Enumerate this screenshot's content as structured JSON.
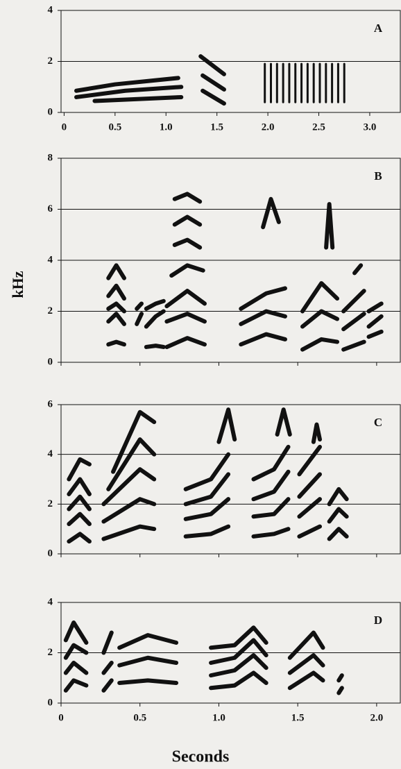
{
  "figure": {
    "ylabel": "kHz",
    "xlabel": "Seconds"
  },
  "chart_data": [
    {
      "type": "spectrogram",
      "label": "A",
      "xlim": [
        -0.03,
        3.3
      ],
      "ylim": [
        0,
        4
      ],
      "yticks": [
        0,
        2,
        4
      ],
      "xticks": [
        0,
        0.5,
        {
          "value": 1,
          "label": "1.0"
        },
        1.5,
        {
          "value": 2,
          "label": "2.0"
        },
        2.5,
        {
          "value": 3,
          "label": "3.0"
        }
      ],
      "show_xtick_labels": true,
      "grid": true,
      "traces": [
        {
          "x": [
            0.3,
            1.15
          ],
          "y": [
            0.45,
            0.6
          ]
        },
        {
          "x": [
            0.12,
            0.6,
            1.15
          ],
          "y": [
            0.6,
            0.85,
            1.0
          ]
        },
        {
          "x": [
            0.12,
            0.5,
            1.12
          ],
          "y": [
            0.85,
            1.1,
            1.35
          ]
        },
        {
          "x": [
            1.36,
            1.57
          ],
          "y": [
            0.85,
            0.35
          ]
        },
        {
          "x": [
            1.36,
            1.57
          ],
          "y": [
            1.45,
            0.9
          ]
        },
        {
          "x": [
            1.34,
            1.57
          ],
          "y": [
            2.2,
            1.5
          ]
        },
        {
          "x": [
            1.97,
            1.97
          ],
          "y": [
            0.4,
            1.9
          ]
        },
        {
          "x": [
            2.03,
            2.03
          ],
          "y": [
            0.4,
            1.9
          ]
        },
        {
          "x": [
            2.09,
            2.09
          ],
          "y": [
            0.4,
            1.9
          ]
        },
        {
          "x": [
            2.15,
            2.15
          ],
          "y": [
            0.4,
            1.9
          ]
        },
        {
          "x": [
            2.21,
            2.21
          ],
          "y": [
            0.4,
            1.9
          ]
        },
        {
          "x": [
            2.27,
            2.27
          ],
          "y": [
            0.4,
            1.9
          ]
        },
        {
          "x": [
            2.33,
            2.33
          ],
          "y": [
            0.4,
            1.9
          ]
        },
        {
          "x": [
            2.39,
            2.39
          ],
          "y": [
            0.4,
            1.9
          ]
        },
        {
          "x": [
            2.45,
            2.45
          ],
          "y": [
            0.4,
            1.9
          ]
        },
        {
          "x": [
            2.51,
            2.51
          ],
          "y": [
            0.4,
            1.9
          ]
        },
        {
          "x": [
            2.57,
            2.57
          ],
          "y": [
            0.4,
            1.9
          ]
        },
        {
          "x": [
            2.63,
            2.63
          ],
          "y": [
            0.4,
            1.9
          ]
        },
        {
          "x": [
            2.69,
            2.69
          ],
          "y": [
            0.4,
            1.9
          ]
        },
        {
          "x": [
            2.75,
            2.75
          ],
          "y": [
            0.4,
            1.9
          ]
        }
      ]
    },
    {
      "type": "spectrogram",
      "label": "B",
      "xlim": [
        0,
        2.15
      ],
      "ylim": [
        0,
        8
      ],
      "yticks": [
        0,
        2,
        4,
        6,
        8
      ],
      "xticks": [
        0,
        0.5,
        1,
        1.5,
        2
      ],
      "show_xtick_labels": false,
      "grid": true,
      "traces": [
        {
          "x": [
            0.3,
            0.35,
            0.4
          ],
          "y": [
            0.7,
            0.8,
            0.7
          ]
        },
        {
          "x": [
            0.3,
            0.35,
            0.4
          ],
          "y": [
            1.6,
            1.9,
            1.5
          ]
        },
        {
          "x": [
            0.3,
            0.35,
            0.4
          ],
          "y": [
            2.1,
            2.3,
            2.0
          ]
        },
        {
          "x": [
            0.3,
            0.35,
            0.4
          ],
          "y": [
            2.6,
            3.0,
            2.5
          ]
        },
        {
          "x": [
            0.3,
            0.35,
            0.4
          ],
          "y": [
            3.3,
            3.8,
            3.3
          ]
        },
        {
          "x": [
            0.48,
            0.51
          ],
          "y": [
            1.5,
            1.9
          ]
        },
        {
          "x": [
            0.48,
            0.51
          ],
          "y": [
            2.1,
            2.3
          ]
        },
        {
          "x": [
            0.54,
            0.6,
            0.65
          ],
          "y": [
            0.6,
            0.65,
            0.6
          ]
        },
        {
          "x": [
            0.54,
            0.6,
            0.65
          ],
          "y": [
            1.4,
            1.8,
            2.0
          ]
        },
        {
          "x": [
            0.54,
            0.6,
            0.65
          ],
          "y": [
            2.1,
            2.3,
            2.4
          ]
        },
        {
          "x": [
            0.67,
            0.8,
            0.91
          ],
          "y": [
            0.6,
            0.95,
            0.7
          ]
        },
        {
          "x": [
            0.67,
            0.8,
            0.91
          ],
          "y": [
            1.6,
            1.9,
            1.6
          ]
        },
        {
          "x": [
            0.67,
            0.8,
            0.91
          ],
          "y": [
            2.2,
            2.8,
            2.3
          ]
        },
        {
          "x": [
            0.7,
            0.8,
            0.9
          ],
          "y": [
            3.4,
            3.8,
            3.6
          ]
        },
        {
          "x": [
            0.72,
            0.8,
            0.88
          ],
          "y": [
            4.6,
            4.8,
            4.5
          ]
        },
        {
          "x": [
            0.72,
            0.8,
            0.88
          ],
          "y": [
            5.4,
            5.7,
            5.4
          ]
        },
        {
          "x": [
            0.72,
            0.8,
            0.88
          ],
          "y": [
            6.4,
            6.6,
            6.3
          ]
        },
        {
          "x": [
            1.14,
            1.3,
            1.42
          ],
          "y": [
            0.7,
            1.1,
            0.9
          ]
        },
        {
          "x": [
            1.14,
            1.3,
            1.42
          ],
          "y": [
            1.5,
            2.0,
            1.8
          ]
        },
        {
          "x": [
            1.14,
            1.3,
            1.42
          ],
          "y": [
            2.1,
            2.7,
            2.9
          ]
        },
        {
          "x": [
            1.28,
            1.33,
            1.38
          ],
          "y": [
            5.3,
            6.4,
            5.5
          ]
        },
        {
          "x": [
            1.53,
            1.65,
            1.75
          ],
          "y": [
            0.5,
            0.9,
            0.8
          ]
        },
        {
          "x": [
            1.53,
            1.65,
            1.75
          ],
          "y": [
            1.4,
            2.0,
            1.7
          ]
        },
        {
          "x": [
            1.53,
            1.65,
            1.75
          ],
          "y": [
            2.0,
            3.1,
            2.5
          ]
        },
        {
          "x": [
            1.68,
            1.7,
            1.72
          ],
          "y": [
            4.5,
            6.2,
            4.5
          ]
        },
        {
          "x": [
            1.79,
            1.92
          ],
          "y": [
            0.5,
            0.8
          ]
        },
        {
          "x": [
            1.79,
            1.92
          ],
          "y": [
            1.3,
            1.9
          ]
        },
        {
          "x": [
            1.79,
            1.92
          ],
          "y": [
            2.0,
            2.8
          ]
        },
        {
          "x": [
            1.86,
            1.9
          ],
          "y": [
            3.5,
            3.8
          ]
        },
        {
          "x": [
            1.95,
            2.03
          ],
          "y": [
            1.0,
            1.2
          ]
        },
        {
          "x": [
            1.95,
            2.03
          ],
          "y": [
            1.4,
            1.8
          ]
        },
        {
          "x": [
            1.95,
            2.03
          ],
          "y": [
            2.0,
            2.3
          ]
        }
      ]
    },
    {
      "type": "spectrogram",
      "label": "C",
      "xlim": [
        0,
        2.15
      ],
      "ylim": [
        0,
        6
      ],
      "yticks": [
        0,
        2,
        4,
        6
      ],
      "xticks": [
        0,
        0.5,
        1,
        1.5,
        2
      ],
      "show_xtick_labels": false,
      "grid": true,
      "traces": [
        {
          "x": [
            0.05,
            0.12,
            0.18
          ],
          "y": [
            0.5,
            0.8,
            0.5
          ]
        },
        {
          "x": [
            0.05,
            0.12,
            0.18
          ],
          "y": [
            1.2,
            1.6,
            1.2
          ]
        },
        {
          "x": [
            0.05,
            0.12,
            0.18
          ],
          "y": [
            1.8,
            2.3,
            1.8
          ]
        },
        {
          "x": [
            0.05,
            0.12,
            0.18
          ],
          "y": [
            2.4,
            3.0,
            2.4
          ]
        },
        {
          "x": [
            0.05,
            0.12,
            0.18
          ],
          "y": [
            3.0,
            3.8,
            3.6
          ]
        },
        {
          "x": [
            0.27,
            0.5,
            0.59
          ],
          "y": [
            0.6,
            1.1,
            1.0
          ]
        },
        {
          "x": [
            0.27,
            0.5,
            0.59
          ],
          "y": [
            1.3,
            2.2,
            2.0
          ]
        },
        {
          "x": [
            0.27,
            0.5,
            0.59
          ],
          "y": [
            2.0,
            3.4,
            3.0
          ]
        },
        {
          "x": [
            0.3,
            0.5,
            0.59
          ],
          "y": [
            2.6,
            4.6,
            4.0
          ]
        },
        {
          "x": [
            0.33,
            0.5,
            0.59
          ],
          "y": [
            3.3,
            5.7,
            5.3
          ]
        },
        {
          "x": [
            0.79,
            0.95,
            1.06
          ],
          "y": [
            0.7,
            0.8,
            1.1
          ]
        },
        {
          "x": [
            0.79,
            0.95,
            1.06
          ],
          "y": [
            1.4,
            1.6,
            2.2
          ]
        },
        {
          "x": [
            0.79,
            0.95,
            1.06
          ],
          "y": [
            2.0,
            2.3,
            3.2
          ]
        },
        {
          "x": [
            0.79,
            0.95,
            1.06
          ],
          "y": [
            2.6,
            3.0,
            4.0
          ]
        },
        {
          "x": [
            1.0,
            1.06,
            1.1
          ],
          "y": [
            4.5,
            5.8,
            4.6
          ]
        },
        {
          "x": [
            1.22,
            1.35,
            1.44
          ],
          "y": [
            0.7,
            0.8,
            1.0
          ]
        },
        {
          "x": [
            1.22,
            1.35,
            1.44
          ],
          "y": [
            1.5,
            1.6,
            2.2
          ]
        },
        {
          "x": [
            1.22,
            1.35,
            1.44
          ],
          "y": [
            2.2,
            2.5,
            3.3
          ]
        },
        {
          "x": [
            1.22,
            1.35,
            1.44
          ],
          "y": [
            3.0,
            3.4,
            4.3
          ]
        },
        {
          "x": [
            1.37,
            1.41,
            1.45
          ],
          "y": [
            4.8,
            5.8,
            4.8
          ]
        },
        {
          "x": [
            1.51,
            1.64
          ],
          "y": [
            0.7,
            1.1
          ]
        },
        {
          "x": [
            1.51,
            1.64
          ],
          "y": [
            1.5,
            2.2
          ]
        },
        {
          "x": [
            1.51,
            1.64
          ],
          "y": [
            2.3,
            3.2
          ]
        },
        {
          "x": [
            1.51,
            1.64
          ],
          "y": [
            3.2,
            4.3
          ]
        },
        {
          "x": [
            1.6,
            1.62,
            1.64
          ],
          "y": [
            4.5,
            5.2,
            4.6
          ]
        },
        {
          "x": [
            1.7,
            1.76,
            1.81
          ],
          "y": [
            0.6,
            1.0,
            0.7
          ]
        },
        {
          "x": [
            1.7,
            1.76,
            1.81
          ],
          "y": [
            1.3,
            1.8,
            1.5
          ]
        },
        {
          "x": [
            1.7,
            1.76,
            1.81
          ],
          "y": [
            2.0,
            2.6,
            2.2
          ]
        }
      ]
    },
    {
      "type": "spectrogram",
      "label": "D",
      "xlim": [
        0,
        2.15
      ],
      "ylim": [
        0,
        4
      ],
      "yticks": [
        0,
        2,
        4
      ],
      "xticks": [
        0,
        0.5,
        {
          "value": 1,
          "label": "1.0"
        },
        1.5,
        {
          "value": 2,
          "label": "2.0"
        }
      ],
      "show_xtick_labels": true,
      "grid": true,
      "traces": [
        {
          "x": [
            0.03,
            0.08,
            0.16
          ],
          "y": [
            0.5,
            0.9,
            0.7
          ]
        },
        {
          "x": [
            0.03,
            0.08,
            0.16
          ],
          "y": [
            1.2,
            1.6,
            1.2
          ]
        },
        {
          "x": [
            0.03,
            0.08,
            0.16
          ],
          "y": [
            1.8,
            2.3,
            2.0
          ]
        },
        {
          "x": [
            0.03,
            0.08,
            0.16
          ],
          "y": [
            2.5,
            3.2,
            2.4
          ]
        },
        {
          "x": [
            0.27,
            0.32
          ],
          "y": [
            0.5,
            0.9
          ]
        },
        {
          "x": [
            0.27,
            0.32
          ],
          "y": [
            1.2,
            1.6
          ]
        },
        {
          "x": [
            0.27,
            0.32
          ],
          "y": [
            2.0,
            2.8
          ]
        },
        {
          "x": [
            0.37,
            0.55,
            0.73
          ],
          "y": [
            0.8,
            0.9,
            0.8
          ]
        },
        {
          "x": [
            0.37,
            0.55,
            0.73
          ],
          "y": [
            1.5,
            1.8,
            1.6
          ]
        },
        {
          "x": [
            0.37,
            0.55,
            0.73
          ],
          "y": [
            2.2,
            2.7,
            2.4
          ]
        },
        {
          "x": [
            0.95,
            1.1,
            1.22,
            1.3
          ],
          "y": [
            0.6,
            0.7,
            1.2,
            0.8
          ]
        },
        {
          "x": [
            0.95,
            1.1,
            1.22,
            1.3
          ],
          "y": [
            1.1,
            1.3,
            1.9,
            1.4
          ]
        },
        {
          "x": [
            0.95,
            1.1,
            1.22,
            1.3
          ],
          "y": [
            1.6,
            1.8,
            2.5,
            1.9
          ]
        },
        {
          "x": [
            0.95,
            1.1,
            1.22,
            1.3
          ],
          "y": [
            2.2,
            2.3,
            3.0,
            2.4
          ]
        },
        {
          "x": [
            1.45,
            1.6,
            1.66
          ],
          "y": [
            0.6,
            1.2,
            0.9
          ]
        },
        {
          "x": [
            1.45,
            1.6,
            1.66
          ],
          "y": [
            1.2,
            1.9,
            1.5
          ]
        },
        {
          "x": [
            1.45,
            1.6,
            1.66
          ],
          "y": [
            1.8,
            2.8,
            2.2
          ]
        },
        {
          "x": [
            1.76,
            1.78
          ],
          "y": [
            0.4,
            0.6
          ]
        },
        {
          "x": [
            1.76,
            1.78
          ],
          "y": [
            0.9,
            1.1
          ]
        }
      ]
    }
  ]
}
